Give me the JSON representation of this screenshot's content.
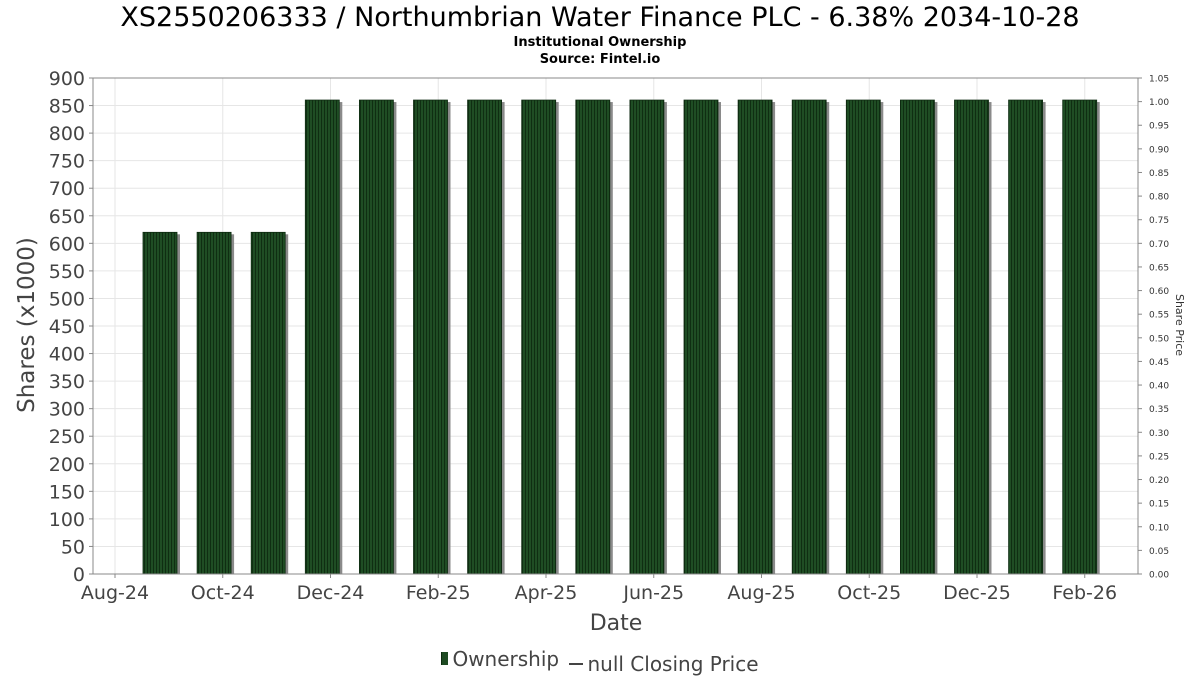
{
  "chart_data": {
    "type": "bar",
    "title": "XS2550206333 / Northumbrian Water Finance PLC - 6.38% 2034-10-28",
    "subtitle": "Institutional Ownership",
    "source": "Source: Fintel.io",
    "xlabel": "Date",
    "ylabel": "Shares (x1000)",
    "y2label": "Share Price",
    "ylim": [
      0,
      900
    ],
    "y2lim": [
      0,
      1.05
    ],
    "y_ticks": [
      "0",
      "50",
      "100",
      "150",
      "200",
      "250",
      "300",
      "350",
      "400",
      "450",
      "500",
      "550",
      "600",
      "650",
      "700",
      "750",
      "800",
      "850",
      "900"
    ],
    "y2_ticks": [
      "0.00",
      "0.05",
      "0.10",
      "0.15",
      "0.20",
      "0.25",
      "0.30",
      "0.35",
      "0.40",
      "0.45",
      "0.50",
      "0.55",
      "0.60",
      "0.65",
      "0.70",
      "0.75",
      "0.80",
      "0.85",
      "0.90",
      "0.95",
      "1.00",
      "1.05"
    ],
    "x_ticks": [
      "Aug-24",
      "Oct-24",
      "Dec-24",
      "Feb-25",
      "Apr-25",
      "Jun-25",
      "Aug-25",
      "Oct-25",
      "Dec-25",
      "Feb-26"
    ],
    "series": [
      {
        "name": "Ownership",
        "values": [
          620,
          620,
          620,
          860,
          860,
          860,
          860,
          860,
          860,
          860,
          860,
          860,
          860,
          860,
          860,
          860,
          860,
          860
        ]
      },
      {
        "name": "null Closing Price",
        "values": []
      }
    ],
    "legend": [
      "Ownership",
      "null Closing Price"
    ],
    "legend_position": "bottom",
    "grid": true,
    "colors": {
      "bar": "#1e4a22",
      "bar_dark": "#0d2a10",
      "shadow": "#8a8a8a",
      "grid": "#e6e6e6",
      "axis": "#888888"
    }
  }
}
